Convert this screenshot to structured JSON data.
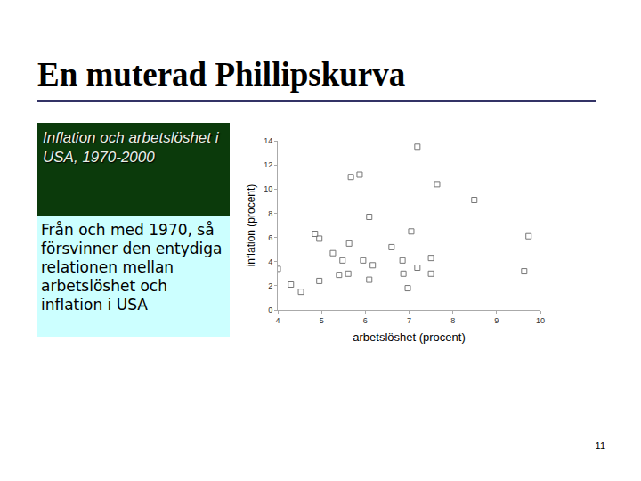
{
  "slide": {
    "title": "En muterad Phillipskurva",
    "box_heading": "Inflation och arbetslöshet i USA, 1970-2000",
    "box_text": "Från och med 1970, så försvinner den entydiga relationen mellan arbetslöshet och inflation i USA",
    "page_number": "11"
  },
  "chart_data": {
    "type": "scatter",
    "x_label": "arbetslöshet (procent)",
    "y_label": "inflation (procent)",
    "x": [
      7.19,
      5.67,
      5.87,
      7.64,
      8.49,
      6.09,
      4.85,
      4.95,
      7.05,
      9.73,
      5.63,
      6.6,
      5.26,
      5.48,
      5.95,
      6.17,
      4.0,
      6.85,
      7.5,
      7.19,
      6.87,
      5.4,
      5.61,
      6.09,
      7.5,
      9.63,
      4.3,
      4.95,
      4.53,
      6.97
    ],
    "values": [
      13.5,
      11.0,
      11.2,
      10.4,
      9.1,
      7.7,
      6.3,
      5.9,
      6.5,
      6.1,
      5.5,
      5.2,
      4.7,
      4.1,
      4.1,
      3.7,
      3.4,
      4.1,
      4.3,
      3.5,
      3.0,
      2.9,
      3.0,
      2.5,
      3.0,
      3.2,
      2.1,
      2.4,
      1.5,
      1.8
    ],
    "color": "#777777",
    "marker": "square-open",
    "xlim": [
      4,
      10
    ],
    "xticks": [
      4,
      5,
      6,
      7,
      8,
      9,
      10
    ],
    "ylim": [
      0,
      14
    ],
    "yticks": [
      0,
      2,
      4,
      6,
      8,
      10,
      12,
      14
    ],
    "grid": false
  }
}
